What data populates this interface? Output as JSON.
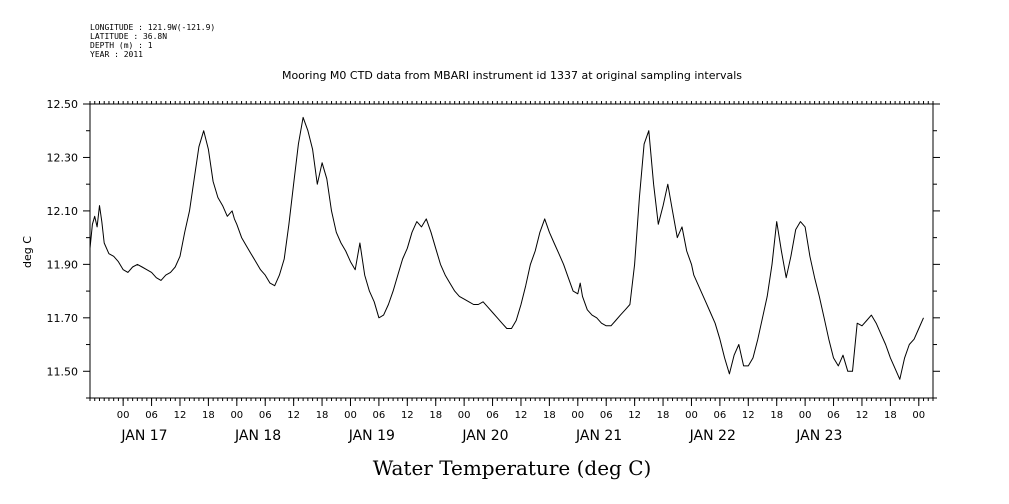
{
  "meta": {
    "longitude": "LONGITUDE : 121.9W(-121.9)",
    "latitude": "LATITUDE : 36.8N",
    "depth": "DEPTH (m) : 1",
    "year": "YEAR : 2011"
  },
  "chart_data": {
    "type": "line",
    "title": "Mooring M0 CTD data from MBARI instrument id 1337 at original sampling intervals",
    "xlabel": "Water Temperature (deg C)",
    "ylabel": "deg C",
    "ylim": [
      11.4,
      12.5
    ],
    "y_tick_labels": [
      "11.50",
      "11.70",
      "11.90",
      "12.10",
      "12.30",
      "12.50"
    ],
    "y_tick_values": [
      11.5,
      11.7,
      11.9,
      12.1,
      12.3,
      12.5
    ],
    "xlim_hours": [
      -7,
      171
    ],
    "x_hour_ticks": [
      0,
      6,
      12,
      18,
      24,
      30,
      36,
      42,
      48,
      54,
      60,
      66,
      72,
      78,
      84,
      90,
      96,
      102,
      108,
      114,
      120,
      126,
      132,
      138,
      144,
      150,
      156,
      162,
      168
    ],
    "x_hour_labels": [
      "00",
      "06",
      "12",
      "18",
      "00",
      "06",
      "12",
      "18",
      "00",
      "06",
      "12",
      "18",
      "00",
      "06",
      "12",
      "18",
      "00",
      "06",
      "12",
      "18",
      "00",
      "06",
      "12",
      "18",
      "00",
      "06",
      "12",
      "18",
      "00"
    ],
    "day_labels": [
      "JAN 17",
      "JAN 18",
      "JAN 19",
      "JAN 20",
      "JAN 21",
      "JAN 22",
      "JAN 23"
    ],
    "day_label_hours": [
      4.5,
      28.5,
      52.5,
      76.5,
      100.5,
      124.5,
      147
    ],
    "grid": false,
    "series": [
      {
        "hours": [
          -7,
          -6.5,
          -6,
          -5.5,
          -5,
          -4.5,
          -4,
          -3,
          -2,
          -1,
          0,
          1,
          2,
          3,
          4,
          5,
          6,
          7,
          8,
          9,
          10,
          11,
          12,
          13,
          14,
          15,
          16,
          17,
          18,
          19,
          20,
          21,
          22,
          23,
          23.5,
          24,
          25,
          26,
          27,
          28,
          29,
          30,
          31,
          32,
          33,
          34,
          35,
          36,
          37,
          38,
          39,
          40,
          41,
          42,
          43,
          44,
          45,
          46,
          47,
          48,
          49,
          50,
          51,
          52,
          53,
          54,
          55,
          56,
          57,
          58,
          59,
          60,
          61,
          62,
          63,
          64,
          65,
          66,
          67,
          68,
          69,
          70,
          71,
          72,
          73,
          74,
          75,
          76,
          77,
          78,
          79,
          80,
          81,
          82,
          83,
          84,
          85,
          86,
          87,
          88,
          89,
          90,
          91,
          92,
          93,
          94,
          95,
          96,
          96.5,
          97,
          98,
          99,
          100,
          101,
          102,
          103,
          104,
          105,
          106,
          107,
          108,
          109,
          110,
          111,
          112,
          113,
          114,
          115,
          116,
          117,
          118,
          119,
          120,
          120.5,
          121,
          122,
          123,
          124,
          125,
          126,
          127,
          128,
          129,
          130,
          131,
          132,
          133,
          134,
          135,
          136,
          137,
          138,
          139,
          140,
          141,
          142,
          143,
          144,
          145,
          146,
          147,
          148,
          149,
          150,
          151,
          152,
          153,
          154,
          155,
          156,
          157,
          158,
          159,
          160,
          161,
          162,
          163,
          164,
          165,
          166,
          167,
          168,
          169
        ],
        "values": [
          11.96,
          12.05,
          12.08,
          12.04,
          12.12,
          12.06,
          11.98,
          11.94,
          11.93,
          11.91,
          11.88,
          11.87,
          11.89,
          11.9,
          11.89,
          11.88,
          11.87,
          11.85,
          11.84,
          11.86,
          11.87,
          11.89,
          11.93,
          12.02,
          12.1,
          12.22,
          12.34,
          12.4,
          12.33,
          12.21,
          12.15,
          12.12,
          12.08,
          12.1,
          12.07,
          12.05,
          12.0,
          11.97,
          11.94,
          11.91,
          11.88,
          11.86,
          11.83,
          11.82,
          11.86,
          11.92,
          12.05,
          12.2,
          12.35,
          12.45,
          12.4,
          12.33,
          12.2,
          12.28,
          12.22,
          12.1,
          12.02,
          11.98,
          11.95,
          11.91,
          11.88,
          11.98,
          11.86,
          11.8,
          11.76,
          11.7,
          11.71,
          11.75,
          11.8,
          11.86,
          11.92,
          11.96,
          12.02,
          12.06,
          12.04,
          12.07,
          12.02,
          11.96,
          11.9,
          11.86,
          11.83,
          11.8,
          11.78,
          11.77,
          11.76,
          11.75,
          11.75,
          11.76,
          11.74,
          11.72,
          11.7,
          11.68,
          11.66,
          11.66,
          11.69,
          11.75,
          11.82,
          11.9,
          11.95,
          12.02,
          12.07,
          12.02,
          11.98,
          11.94,
          11.9,
          11.85,
          11.8,
          11.79,
          11.83,
          11.78,
          11.73,
          11.71,
          11.7,
          11.68,
          11.67,
          11.67,
          11.69,
          11.71,
          11.73,
          11.75,
          11.9,
          12.15,
          12.35,
          12.4,
          12.2,
          12.05,
          12.12,
          12.2,
          12.1,
          12.0,
          12.04,
          11.95,
          11.9,
          11.86,
          11.84,
          11.8,
          11.76,
          11.72,
          11.68,
          11.62,
          11.55,
          11.49,
          11.56,
          11.6,
          11.52,
          11.52,
          11.55,
          11.62,
          11.7,
          11.78,
          11.9,
          12.06,
          11.95,
          11.85,
          11.93,
          12.03,
          12.06,
          12.04,
          11.93,
          11.85,
          11.78,
          11.7,
          11.62,
          11.55,
          11.52,
          11.56,
          11.5,
          11.5,
          11.68,
          11.67,
          11.69,
          11.71,
          11.68,
          11.64,
          11.6,
          11.55,
          11.51,
          11.47,
          11.55,
          11.6,
          11.62,
          11.66,
          11.7
        ]
      }
    ]
  }
}
